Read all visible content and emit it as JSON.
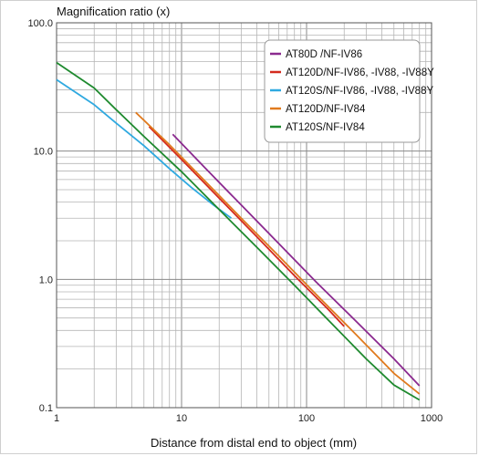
{
  "chart_data": {
    "type": "line",
    "ylabel": "Magnification ratio (x)",
    "xlabel": "Distance from distal end to object (mm)",
    "x_scale": "log",
    "y_scale": "log",
    "xlim": [
      1,
      1000
    ],
    "ylim": [
      0.1,
      100
    ],
    "x_tick_labels": [
      "1",
      "10",
      "100",
      "1000"
    ],
    "y_tick_labels": [
      "0.1",
      "1.0",
      "10.0",
      "100.0"
    ],
    "grid": true,
    "legend_position": "top-right",
    "series": [
      {
        "name": "AT80D /NF-IV86",
        "color": "#8b2a8f",
        "points": [
          [
            8.5,
            13.5
          ],
          [
            15,
            7.6
          ],
          [
            30,
            3.8
          ],
          [
            60,
            1.9
          ],
          [
            120,
            0.95
          ],
          [
            250,
            0.47
          ],
          [
            500,
            0.24
          ],
          [
            800,
            0.148
          ]
        ]
      },
      {
        "name": "AT120D/NF-IV86, -IV88, -IV88Y",
        "color": "#d42a1e",
        "points": [
          [
            5.5,
            15.5
          ],
          [
            10,
            8.6
          ],
          [
            20,
            4.3
          ],
          [
            40,
            2.15
          ],
          [
            80,
            1.07
          ],
          [
            150,
            0.58
          ],
          [
            200,
            0.43
          ]
        ]
      },
      {
        "name": "AT120S/NF-IV86, -IV88, -IV88Y",
        "color": "#2fa9e0",
        "points": [
          [
            1,
            36
          ],
          [
            2,
            23
          ],
          [
            3,
            16.5
          ],
          [
            5,
            11
          ],
          [
            8,
            7.3
          ],
          [
            12,
            5.2
          ],
          [
            18,
            3.8
          ],
          [
            25,
            3.0
          ]
        ]
      },
      {
        "name": "AT120D/NF-IV84",
        "color": "#e07a1e",
        "points": [
          [
            4.3,
            20
          ],
          [
            8,
            11.2
          ],
          [
            15,
            6.0
          ],
          [
            30,
            3.0
          ],
          [
            60,
            1.52
          ],
          [
            120,
            0.76
          ],
          [
            250,
            0.37
          ],
          [
            500,
            0.185
          ],
          [
            800,
            0.128
          ]
        ]
      },
      {
        "name": "AT120S/NF-IV84",
        "color": "#1f8a2f",
        "points": [
          [
            1,
            49
          ],
          [
            2,
            31
          ],
          [
            3,
            21
          ],
          [
            5,
            13
          ],
          [
            10,
            6.9
          ],
          [
            20,
            3.5
          ],
          [
            40,
            1.78
          ],
          [
            80,
            0.9
          ],
          [
            150,
            0.48
          ],
          [
            300,
            0.24
          ],
          [
            500,
            0.15
          ],
          [
            800,
            0.115
          ]
        ]
      }
    ]
  }
}
